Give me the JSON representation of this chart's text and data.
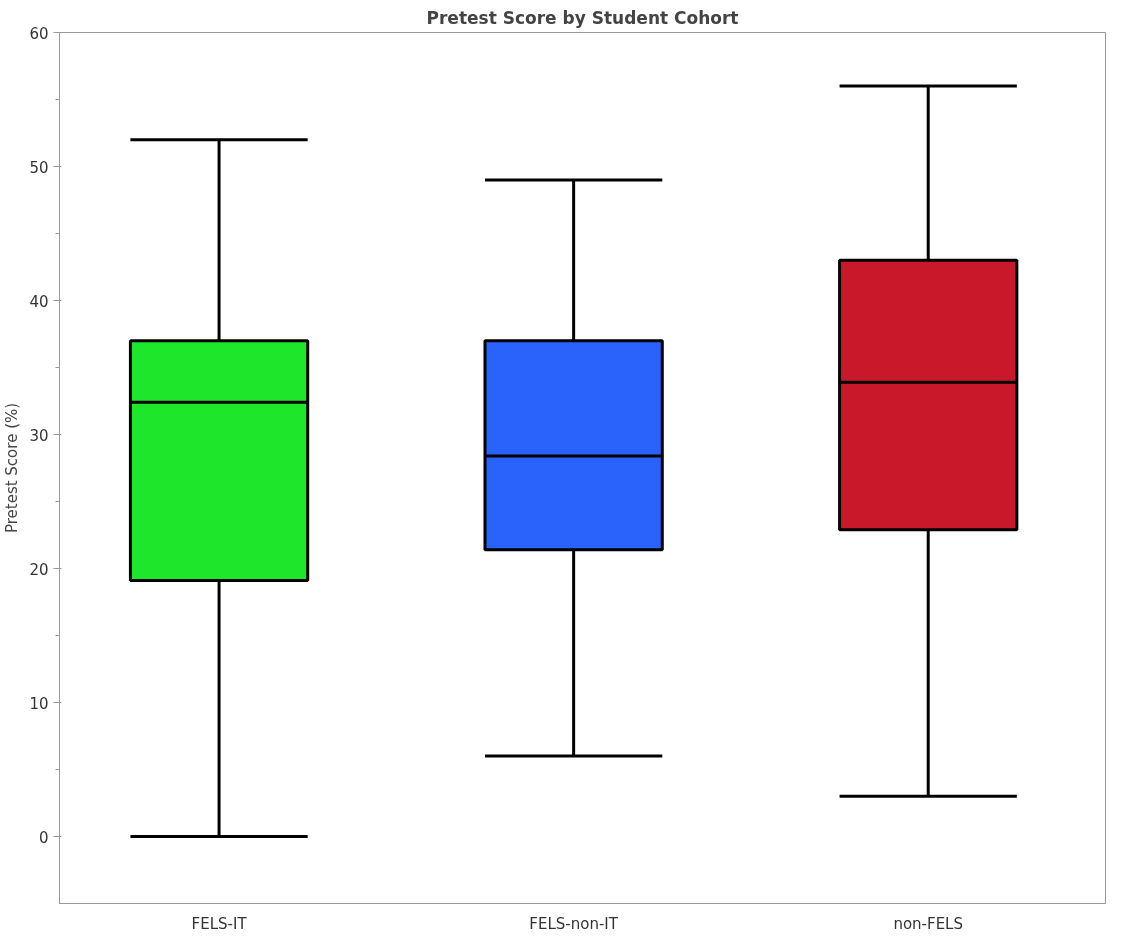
{
  "chart_data": {
    "type": "box",
    "title": "Pretest Score by Student Cohort",
    "ylabel": "Pretest Score (%)",
    "categories": [
      "FELS-IT",
      "FELS-non-IT",
      "non-FELS"
    ],
    "colors": [
      "#1ee62a",
      "#2a62fc",
      "#c8182a"
    ],
    "boxes": [
      {
        "low": 0,
        "q1": 19.1,
        "median": 32.4,
        "q3": 37,
        "high": 52
      },
      {
        "low": 6,
        "q1": 21.4,
        "median": 28.4,
        "q3": 37,
        "high": 49
      },
      {
        "low": 3,
        "q1": 22.9,
        "median": 33.9,
        "q3": 43,
        "high": 56
      }
    ],
    "ylim": [
      -5,
      60
    ],
    "yticks": [
      0,
      10,
      20,
      30,
      40,
      50,
      60
    ],
    "grid": false
  }
}
